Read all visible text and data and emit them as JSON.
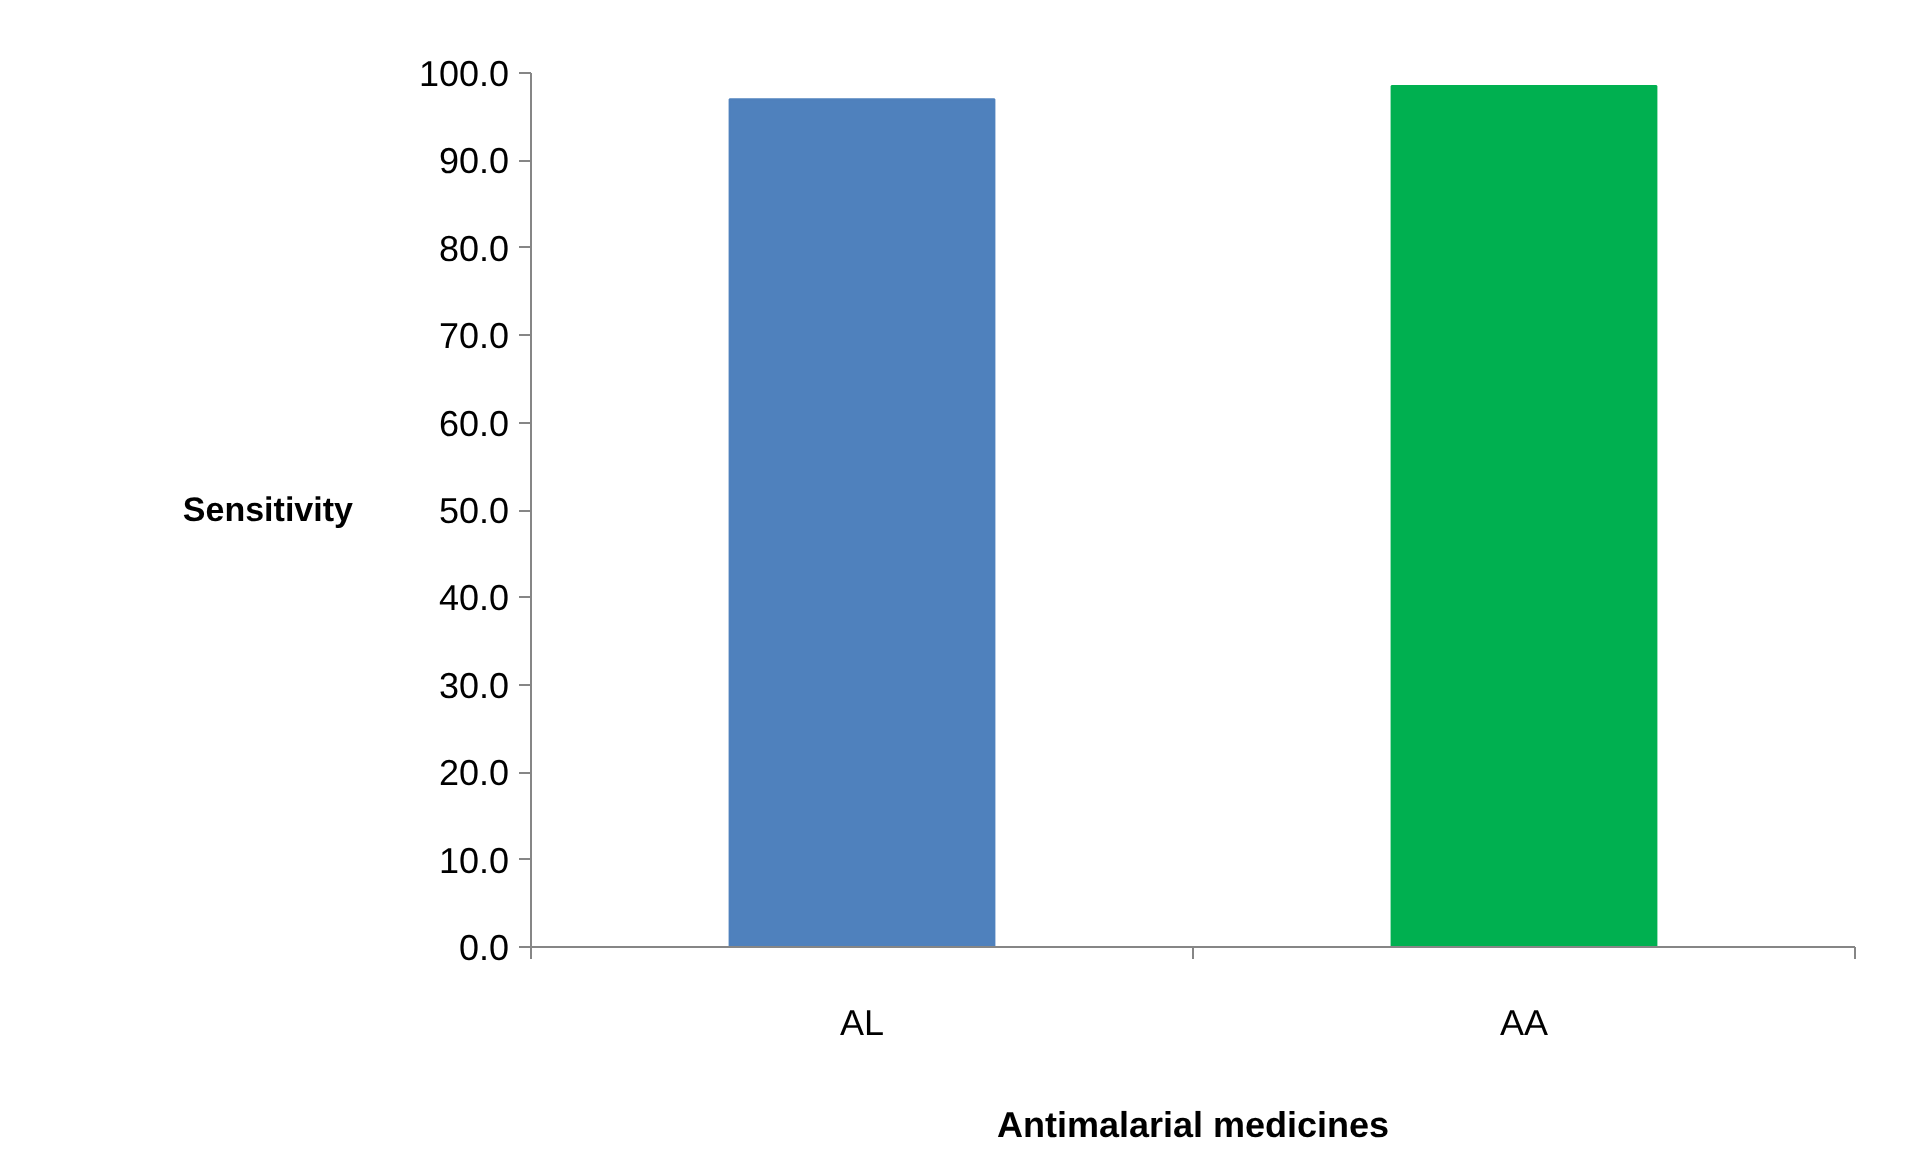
{
  "chart_data": {
    "type": "bar",
    "xlabel": "Antimalarial medicines",
    "ylabel": "Sensitivity",
    "categories": [
      "AL",
      "AA"
    ],
    "values": [
      97.0,
      98.5
    ],
    "colors": [
      "#4f81bd",
      "#00b050"
    ],
    "ylim": [
      0,
      100
    ],
    "yticks": [
      {
        "value": 0,
        "label": "0.0"
      },
      {
        "value": 10,
        "label": "10.0"
      },
      {
        "value": 20,
        "label": "20.0"
      },
      {
        "value": 30,
        "label": "30.0"
      },
      {
        "value": 40,
        "label": "40.0"
      },
      {
        "value": 50,
        "label": "50.0"
      },
      {
        "value": 60,
        "label": "60.0"
      },
      {
        "value": 70,
        "label": "70.0"
      },
      {
        "value": 80,
        "label": "80.0"
      },
      {
        "value": 90,
        "label": "90.0"
      },
      {
        "value": 100,
        "label": "100.0"
      }
    ],
    "grid": false
  }
}
